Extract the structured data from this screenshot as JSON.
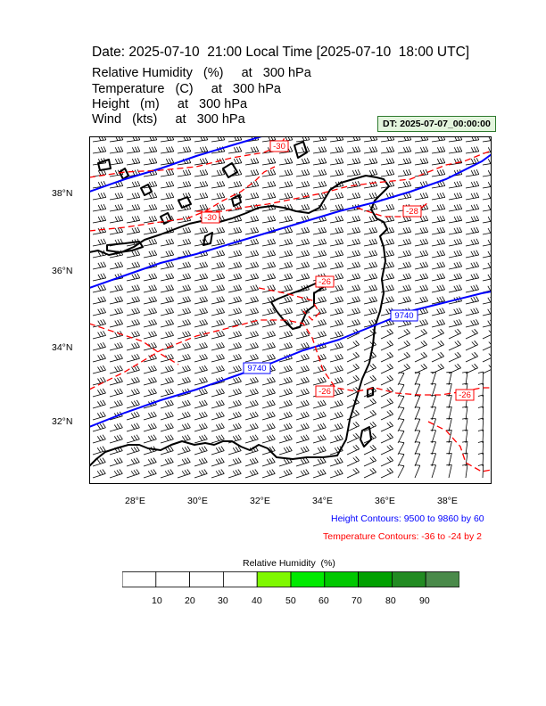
{
  "header": {
    "title": "Date: 2025-07-10  21:00 Local Time [2025-07-10  18:00 UTC]",
    "fields": [
      "Relative Humidity   (%)     at   300 hPa",
      "Temperature   (C)     at   300 hPa",
      "Height   (m)     at   300 hPa",
      "Wind   (kts)     at   300 hPa"
    ],
    "dt_badge": "DT: 2025-07-07_00:00:00"
  },
  "map": {
    "lat_labels": [
      "38°N",
      "36°N",
      "34°N",
      "32°N"
    ],
    "lon_labels": [
      "28°E",
      "30°E",
      "32°E",
      "34°E",
      "36°E",
      "38°E"
    ],
    "height_contours": [
      {
        "level": "9740",
        "label_positions": [
          "34.4N_36.6E",
          "33.5N_31.9E"
        ]
      },
      {
        "level": "",
        "label_positions": []
      }
    ],
    "temperature_labels": [
      "-30",
      "-30",
      "-28",
      "-26",
      "-26",
      "-26"
    ],
    "colors": {
      "height": "#0000ff",
      "temperature": "#ff0000",
      "coastline": "#000000",
      "wind_barbs": "#000000"
    }
  },
  "info": {
    "height_contours": "Height Contours: 9500 to 9860 by 60",
    "temperature_contours": "Temperature Contours: -36 to -24 by 2"
  },
  "colorbar": {
    "title": "Relative Humidity  (%)",
    "labels": [
      "10",
      "20",
      "30",
      "40",
      "50",
      "60",
      "70",
      "80",
      "90"
    ],
    "colors": [
      "#ffffff",
      "#ffffff",
      "#ffffff",
      "#ffffff",
      "#7ff800",
      "#00ea00",
      "#00c800",
      "#00a000",
      "#228b22",
      "#4a8a4a"
    ]
  }
}
